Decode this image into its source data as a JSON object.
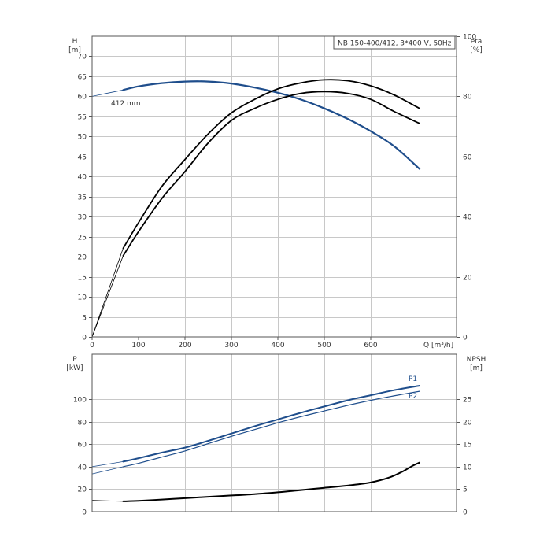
{
  "title": "NB 150-400/412, 3*400 V, 50Hz",
  "colors": {
    "blue": "#1f4e8c",
    "black": "#000000",
    "grid": "#c8c8c8"
  },
  "chart_data": [
    {
      "type": "line",
      "id": "upper",
      "xlabel": "Q [m³/h]",
      "xlim": [
        0,
        700
      ],
      "x_ticks": [
        0,
        100,
        200,
        300,
        400,
        500,
        600
      ],
      "left_axis": {
        "label_line1": "H",
        "label_line2": "[m]",
        "lim": [
          0,
          75
        ],
        "ticks": [
          0,
          5,
          10,
          15,
          20,
          25,
          30,
          35,
          40,
          45,
          50,
          55,
          60,
          65,
          70
        ]
      },
      "right_axis": {
        "label_line1": "eta",
        "label_line2": "[%]",
        "lim": [
          0,
          100
        ],
        "ticks": [
          0,
          20,
          40,
          60,
          80,
          100
        ]
      },
      "annotations": [
        {
          "text": "412 mm"
        }
      ],
      "grid": true,
      "series": [
        {
          "axis": "left",
          "color": "blue",
          "width": 2.2,
          "points": [
            [
              67,
              61.6
            ],
            [
              100,
              62.5
            ],
            [
              150,
              63.3
            ],
            [
              200,
              63.7
            ],
            [
              250,
              63.7
            ],
            [
              300,
              63.2
            ],
            [
              350,
              62.2
            ],
            [
              400,
              60.9
            ],
            [
              450,
              59.2
            ],
            [
              500,
              57.0
            ],
            [
              550,
              54.4
            ],
            [
              600,
              51.3
            ],
            [
              650,
              47.6
            ],
            [
              705,
              41.9
            ]
          ]
        },
        {
          "axis": "left",
          "color": "blue",
          "width": 0.8,
          "points": [
            [
              0,
              60.0
            ],
            [
              67,
              61.6
            ]
          ]
        },
        {
          "axis": "right",
          "color": "black",
          "width": 1.8,
          "points": [
            [
              67,
              27
            ],
            [
              100,
              35
            ],
            [
              150,
              46
            ],
            [
              200,
              55
            ],
            [
              250,
              64.5
            ],
            [
              300,
              72
            ],
            [
              350,
              76
            ],
            [
              400,
              79
            ],
            [
              450,
              81
            ],
            [
              500,
              81.6
            ],
            [
              550,
              81
            ],
            [
              600,
              79
            ],
            [
              650,
              75
            ],
            [
              705,
              71
            ]
          ]
        },
        {
          "axis": "right",
          "color": "black",
          "width": 1.8,
          "points": [
            [
              67,
              29.5
            ],
            [
              100,
              38
            ],
            [
              150,
              50
            ],
            [
              200,
              59
            ],
            [
              250,
              67.5
            ],
            [
              300,
              74.5
            ],
            [
              350,
              79
            ],
            [
              400,
              82.5
            ],
            [
              450,
              84.5
            ],
            [
              500,
              85.5
            ],
            [
              550,
              85.2
            ],
            [
              600,
              83.5
            ],
            [
              650,
              80.5
            ],
            [
              705,
              76
            ]
          ]
        },
        {
          "axis": "right",
          "color": "black",
          "width": 0.8,
          "points": [
            [
              0,
              0
            ],
            [
              67,
              29.5
            ]
          ]
        },
        {
          "axis": "right",
          "color": "black",
          "width": 0.8,
          "points": [
            [
              0,
              0
            ],
            [
              67,
              27
            ]
          ]
        }
      ]
    },
    {
      "type": "line",
      "id": "lower",
      "xlim": [
        0,
        700
      ],
      "x_ticks": [],
      "left_axis": {
        "label_line1": "P",
        "label_line2": "[kW]",
        "lim": [
          0,
          140
        ],
        "ticks": [
          0,
          20,
          40,
          60,
          80,
          100
        ]
      },
      "right_axis": {
        "label_line1": "NPSH",
        "label_line2": "[m]",
        "lim": [
          0,
          35
        ],
        "ticks": [
          0,
          5,
          10,
          15,
          20,
          25
        ]
      },
      "grid": true,
      "series": [
        {
          "name": "P1",
          "axis": "left",
          "color": "blue",
          "width": 2.0,
          "points": [
            [
              67,
              44.5
            ],
            [
              100,
              47.5
            ],
            [
              150,
              52.5
            ],
            [
              200,
              57.0
            ],
            [
              250,
              63.0
            ],
            [
              300,
              69.5
            ],
            [
              350,
              76.0
            ],
            [
              400,
              82.0
            ],
            [
              450,
              88.0
            ],
            [
              500,
              93.5
            ],
            [
              550,
              99.0
            ],
            [
              600,
              103.5
            ],
            [
              650,
              108.0
            ],
            [
              705,
              112.0
            ]
          ]
        },
        {
          "name": "P2",
          "axis": "left",
          "color": "blue",
          "width": 1.2,
          "points": [
            [
              67,
              40.0
            ],
            [
              100,
              43.0
            ],
            [
              150,
              48.5
            ],
            [
              200,
              54.0
            ],
            [
              250,
              60.5
            ],
            [
              300,
              67.0
            ],
            [
              350,
              73.0
            ],
            [
              400,
              79.0
            ],
            [
              450,
              84.5
            ],
            [
              500,
              89.5
            ],
            [
              550,
              94.5
            ],
            [
              600,
              99.0
            ],
            [
              650,
              103.0
            ],
            [
              705,
              107.0
            ]
          ]
        },
        {
          "axis": "left",
          "color": "blue",
          "width": 0.8,
          "points": [
            [
              0,
              40.0
            ],
            [
              67,
              44.5
            ]
          ]
        },
        {
          "axis": "left",
          "color": "blue",
          "width": 0.8,
          "points": [
            [
              0,
              33.5
            ],
            [
              67,
              40.0
            ]
          ]
        },
        {
          "axis": "right",
          "color": "black",
          "width": 2.0,
          "points": [
            [
              67,
              2.3
            ],
            [
              100,
              2.4
            ],
            [
              150,
              2.7
            ],
            [
              200,
              3.0
            ],
            [
              250,
              3.3
            ],
            [
              300,
              3.6
            ],
            [
              350,
              3.9
            ],
            [
              400,
              4.3
            ],
            [
              450,
              4.8
            ],
            [
              500,
              5.3
            ],
            [
              550,
              5.8
            ],
            [
              600,
              6.5
            ],
            [
              640,
              7.6
            ],
            [
              670,
              9.0
            ],
            [
              690,
              10.2
            ],
            [
              705,
              10.9
            ]
          ]
        },
        {
          "axis": "right",
          "color": "black",
          "width": 0.8,
          "points": [
            [
              0,
              2.5
            ],
            [
              67,
              2.3
            ]
          ]
        }
      ]
    }
  ]
}
